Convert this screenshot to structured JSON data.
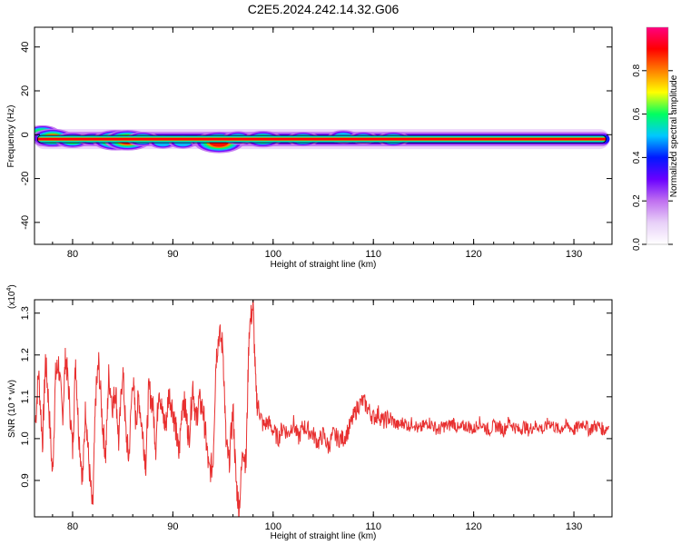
{
  "figure_title": "C2E5.2024.242.14.32.G06",
  "chart_data": [
    {
      "type": "heatmap",
      "xlabel": "Height of straight line (km)",
      "ylabel": "Frequency (Hz)",
      "xlim": [
        76.2,
        133.8
      ],
      "ylim": [
        -50,
        49
      ],
      "xticks": [
        "80",
        "90",
        "100",
        "110",
        "120",
        "130"
      ],
      "yticks": [
        "40",
        "20",
        "0",
        "-20",
        "-40"
      ],
      "colorbar": {
        "label": "Normalized spectral amplitude",
        "ticks": [
          "0.0",
          "0.2",
          "0.4",
          "0.6",
          "0.8"
        ],
        "range": [
          0,
          1
        ],
        "colors": [
          "#ffffff",
          "#e8d0f8",
          "#c070f0",
          "#6a00ff",
          "#0018ff",
          "#00c8ff",
          "#00ff60",
          "#ffff00",
          "#ff8000",
          "#ff0000",
          "#ff0080"
        ]
      },
      "ridge": {
        "frequency_hz": -2,
        "x_start": 76.5,
        "x_end": 133.2
      },
      "features": [
        {
          "x": 77.0,
          "f": 1.0,
          "amp": 0.55
        },
        {
          "x": 78.0,
          "f": -1.5,
          "amp": 0.75
        },
        {
          "x": 80.0,
          "f": -2.5,
          "amp": 0.6
        },
        {
          "x": 82.0,
          "f": -2.0,
          "amp": 0.5
        },
        {
          "x": 84.3,
          "f": -2.5,
          "amp": 0.85
        },
        {
          "x": 85.5,
          "f": -2.5,
          "amp": 0.85
        },
        {
          "x": 87.0,
          "f": -2.0,
          "amp": 0.55
        },
        {
          "x": 89.0,
          "f": -3.5,
          "amp": 0.45
        },
        {
          "x": 91.0,
          "f": -3.5,
          "amp": 0.45
        },
        {
          "x": 93.0,
          "f": -3.0,
          "amp": 0.4
        },
        {
          "x": 94.6,
          "f": -3.5,
          "amp": 0.9
        },
        {
          "x": 96.5,
          "f": -1.5,
          "amp": 0.5
        },
        {
          "x": 99.0,
          "f": -2.0,
          "amp": 0.65
        },
        {
          "x": 103.0,
          "f": -2.0,
          "amp": 0.55
        },
        {
          "x": 107.0,
          "f": -1.0,
          "amp": 0.5
        },
        {
          "x": 109.0,
          "f": -1.5,
          "amp": 0.45
        },
        {
          "x": 112.0,
          "f": -2.0,
          "amp": 0.55
        }
      ]
    },
    {
      "type": "line",
      "xlabel": "Height of straight line (km)",
      "ylabel": "SNR (10 * v/v)",
      "multiplier_label": "(x10",
      "multiplier_exponent": "4",
      "xlim": [
        76.2,
        133.8
      ],
      "ylim": [
        0.813,
        1.332
      ],
      "xticks": [
        "80",
        "90",
        "100",
        "110",
        "120",
        "130"
      ],
      "yticks": [
        "0.9",
        "1.0",
        "1.1",
        "1.2",
        "1.3"
      ],
      "series": [
        {
          "color": "#e83030",
          "x": [
            76.3,
            76.6,
            77.0,
            77.3,
            77.6,
            78.0,
            78.3,
            78.6,
            79.0,
            79.3,
            79.6,
            80.0,
            80.3,
            80.6,
            81.0,
            81.3,
            81.6,
            82.0,
            82.3,
            82.6,
            83.0,
            83.3,
            83.6,
            84.0,
            84.3,
            84.6,
            85.0,
            85.3,
            85.6,
            86.0,
            86.3,
            86.6,
            87.0,
            87.3,
            87.6,
            88.0,
            88.3,
            88.6,
            89.0,
            89.3,
            89.6,
            90.0,
            90.3,
            90.6,
            91.0,
            91.3,
            91.6,
            92.0,
            92.3,
            92.6,
            93.0,
            93.3,
            93.6,
            94.0,
            94.3,
            94.6,
            95.0,
            95.3,
            95.6,
            96.0,
            96.3,
            96.6,
            97.0,
            97.3,
            97.6,
            98.0,
            98.3,
            98.6,
            99.0,
            99.5,
            100.0,
            100.5,
            101.0,
            101.5,
            102.0,
            102.5,
            103.0,
            103.5,
            104.0,
            104.5,
            105.0,
            105.5,
            106.0,
            106.5,
            107.0,
            107.5,
            108.0,
            108.5,
            109.0,
            109.5,
            110.0,
            110.5,
            111.0,
            111.5,
            112.0,
            112.5,
            113.0,
            113.5,
            114.0,
            114.5,
            115.0,
            115.5,
            116.0,
            116.5,
            117.0,
            117.5,
            118.0,
            118.5,
            119.0,
            119.5,
            120.0,
            120.5,
            121.0,
            121.5,
            122.0,
            122.5,
            123.0,
            123.5,
            124.0,
            124.5,
            125.0,
            125.5,
            126.0,
            126.5,
            127.0,
            127.5,
            128.0,
            128.5,
            129.0,
            129.5,
            130.0,
            130.5,
            131.0,
            131.5,
            132.0,
            132.5,
            133.0,
            133.5
          ],
          "y": [
            1.04,
            1.16,
            0.99,
            1.19,
            1.09,
            0.91,
            1.15,
            1.18,
            1.05,
            1.2,
            1.12,
            0.97,
            1.19,
            1.02,
            0.9,
            1.08,
            0.95,
            0.82,
            1.1,
            1.18,
            1.03,
            0.96,
            1.15,
            1.08,
            1.12,
            0.99,
            1.17,
            1.02,
            0.95,
            1.15,
            1.04,
            1.1,
            1.01,
            0.94,
            1.12,
            1.08,
            0.98,
            1.13,
            1.05,
            1.03,
            1.11,
            1.07,
            1.02,
            0.96,
            1.1,
            1.06,
            1.0,
            1.13,
            1.04,
            1.09,
            1.07,
            1.0,
            0.92,
            0.94,
            1.19,
            1.25,
            1.22,
            0.99,
            0.94,
            1.07,
            0.9,
            0.83,
            0.98,
            0.94,
            1.26,
            1.32,
            1.1,
            1.07,
            1.03,
            1.04,
            1.02,
            1.0,
            1.03,
            1.01,
            1.04,
            1.0,
            1.03,
            1.02,
            1.01,
            0.99,
            1.01,
            0.98,
            1.01,
            1.0,
            1.0,
            1.02,
            1.05,
            1.08,
            1.09,
            1.07,
            1.05,
            1.06,
            1.04,
            1.05,
            1.04,
            1.03,
            1.04,
            1.03,
            1.04,
            1.02,
            1.03,
            1.04,
            1.03,
            1.02,
            1.03,
            1.03,
            1.04,
            1.02,
            1.03,
            1.03,
            1.02,
            1.04,
            1.03,
            1.02,
            1.03,
            1.03,
            1.02,
            1.04,
            1.03,
            1.02,
            1.03,
            1.02,
            1.03,
            1.03,
            1.02,
            1.04,
            1.03,
            1.02,
            1.03,
            1.03,
            1.02,
            1.03,
            1.04,
            1.02,
            1.03,
            1.03,
            1.02,
            1.03
          ]
        }
      ]
    }
  ]
}
